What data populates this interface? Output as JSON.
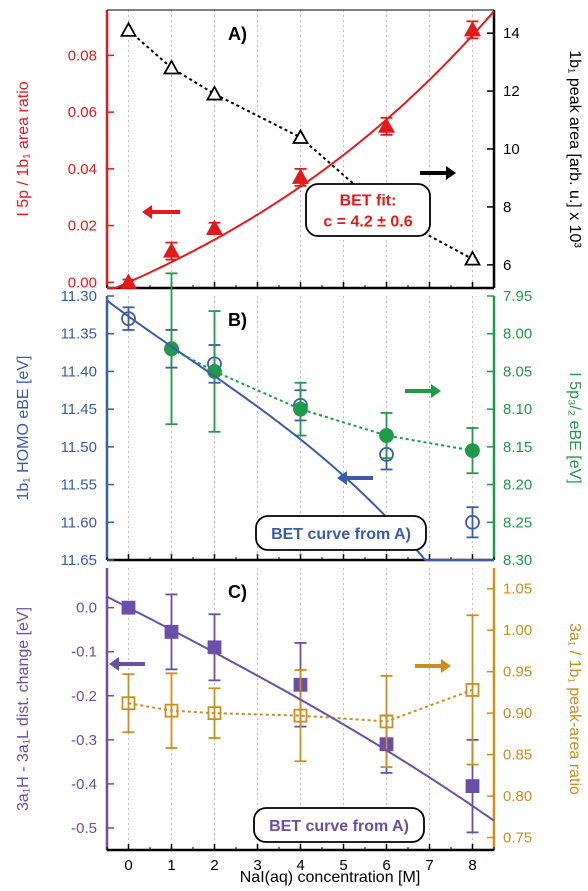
{
  "colors": {
    "red": "#e31a1c",
    "black": "#000000",
    "blue": "#3b5bab",
    "green": "#1f9a48",
    "purple": "#6a4fa8",
    "orange": "#cc8e1d",
    "grid": "#bdbdbd"
  },
  "xaxis": {
    "label": "NaI(aq) concentration [M]",
    "ticks": [
      "0",
      "1",
      "2",
      "3",
      "4",
      "5",
      "6",
      "7",
      "8"
    ],
    "xlim": [
      -0.5,
      8.5
    ]
  },
  "chart_data": [
    {
      "panel": "A)",
      "type": "line",
      "left_axis": {
        "label": "I 5p / 1b₁ area ratio",
        "ylim": [
          -0.002,
          0.096
        ],
        "ticks": [
          "0.00",
          "0.02",
          "0.04",
          "0.06",
          "0.08"
        ],
        "tick_values": [
          0,
          0.02,
          0.04,
          0.06,
          0.08
        ]
      },
      "right_axis": {
        "label": "1b₁ peak area [arb. u.] x 10³",
        "ylim": [
          5.2,
          14.8
        ],
        "ticks": [
          "6",
          "8",
          "10",
          "12",
          "14"
        ],
        "tick_values": [
          6,
          8,
          10,
          12,
          14
        ]
      },
      "series": [
        {
          "axis": "left",
          "marker": "filled-triangle",
          "color": "#e31a1c",
          "x": [
            0,
            1,
            2,
            4,
            6,
            8
          ],
          "y": [
            0.0,
            0.011,
            0.019,
            0.037,
            0.055,
            0.089
          ],
          "err": [
            0.001,
            0.003,
            0.002,
            0.003,
            0.003,
            0.003
          ],
          "fit": "BET"
        },
        {
          "axis": "right",
          "marker": "open-triangle",
          "color": "#000000",
          "style": "dotted",
          "x": [
            0,
            1,
            2,
            4,
            6,
            8
          ],
          "y": [
            14.1,
            12.8,
            11.9,
            10.4,
            7.8,
            6.2
          ]
        }
      ],
      "annotation_lines": [
        "BET fit:",
        "c = 4.2 ± 0.6"
      ]
    },
    {
      "panel": "B)",
      "type": "line",
      "left_axis": {
        "label": "1b₁ HOMO eBE [eV]",
        "ylim": [
          11.3,
          11.65
        ],
        "ticks": [
          "11.30",
          "11.35",
          "11.40",
          "11.45",
          "11.50",
          "11.55",
          "11.60",
          "11.65"
        ],
        "tick_values": [
          11.3,
          11.35,
          11.4,
          11.45,
          11.5,
          11.55,
          11.6,
          11.65
        ],
        "inverted": true
      },
      "right_axis": {
        "label": "I 5p₃/₂ eBE [eV]",
        "ylim": [
          7.95,
          8.3
        ],
        "ticks": [
          "7.95",
          "8.00",
          "8.05",
          "8.10",
          "8.15",
          "8.20",
          "8.25",
          "8.30"
        ],
        "tick_values": [
          7.95,
          8.0,
          8.05,
          8.1,
          8.15,
          8.2,
          8.25,
          8.3
        ],
        "inverted": true
      },
      "series": [
        {
          "axis": "left",
          "marker": "open-circle",
          "color": "#3b5bab",
          "x": [
            0,
            1,
            2,
            4,
            6,
            8
          ],
          "y": [
            11.33,
            11.37,
            11.39,
            11.445,
            11.51,
            11.6
          ],
          "err": [
            0.015,
            0.025,
            0.025,
            0.02,
            0.02,
            0.02
          ]
        },
        {
          "axis": "right",
          "marker": "filled-circle",
          "color": "#1f9a48",
          "style": "dotted",
          "x": [
            1,
            2,
            4,
            6,
            8
          ],
          "y": [
            8.02,
            8.05,
            8.1,
            8.135,
            8.155
          ],
          "err": [
            0.1,
            0.08,
            0.035,
            0.03,
            0.03
          ]
        }
      ],
      "annotation_lines": [
        "BET curve from A)"
      ]
    },
    {
      "panel": "C)",
      "type": "line",
      "left_axis": {
        "label": "3a₁H - 3a₁L dist. change [eV]",
        "ylim": [
          -0.55,
          0.09
        ],
        "ticks": [
          "0.0",
          "-0.1",
          "-0.2",
          "-0.3",
          "-0.4",
          "-0.5"
        ],
        "tick_values": [
          0,
          -0.1,
          -0.2,
          -0.3,
          -0.4,
          -0.5
        ]
      },
      "right_axis": {
        "label": "3a₁ / 1b₁ peak-area ratio",
        "ylim": [
          0.735,
          1.075
        ],
        "ticks": [
          "0.75",
          "0.80",
          "0.85",
          "0.90",
          "0.95",
          "1.00",
          "1.05"
        ],
        "tick_values": [
          0.75,
          0.8,
          0.85,
          0.9,
          0.95,
          1.0,
          1.05
        ]
      },
      "series": [
        {
          "axis": "left",
          "marker": "filled-square",
          "color": "#6a4fa8",
          "x": [
            0,
            1,
            2,
            4,
            6,
            8
          ],
          "y": [
            0.0,
            -0.055,
            -0.09,
            -0.175,
            -0.31,
            -0.405
          ],
          "err": [
            0.01,
            0.085,
            0.075,
            0.095,
            0.065,
            0.105
          ]
        },
        {
          "axis": "right",
          "marker": "open-square",
          "color": "#cc8e1d",
          "style": "dotted",
          "x": [
            0,
            1,
            2,
            4,
            6,
            8
          ],
          "y": [
            0.912,
            0.903,
            0.9,
            0.897,
            0.89,
            0.928
          ],
          "err": [
            0.035,
            0.045,
            0.03,
            0.055,
            0.055,
            0.09
          ]
        }
      ],
      "annotation_lines": [
        "BET curve from A)"
      ]
    }
  ]
}
